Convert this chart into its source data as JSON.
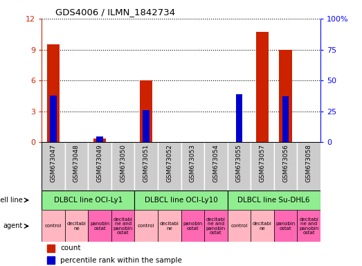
{
  "title": "GDS4006 / ILMN_1842734",
  "samples": [
    "GSM673047",
    "GSM673048",
    "GSM673049",
    "GSM673050",
    "GSM673051",
    "GSM673052",
    "GSM673053",
    "GSM673054",
    "GSM673055",
    "GSM673057",
    "GSM673056",
    "GSM673058"
  ],
  "count_values": [
    9.5,
    0,
    0.35,
    0,
    6.0,
    0,
    0,
    0,
    0,
    10.7,
    9.0,
    0
  ],
  "percentile_values": [
    38.0,
    0,
    4.5,
    0,
    26.0,
    0,
    0,
    0,
    39.0,
    0,
    37.0,
    0
  ],
  "ylim_left": [
    0,
    12
  ],
  "ylim_right": [
    0,
    100
  ],
  "yticks_left": [
    0,
    3,
    6,
    9,
    12
  ],
  "yticks_right": [
    0,
    25,
    50,
    75,
    100
  ],
  "ytick_labels_right": [
    "0",
    "25",
    "50",
    "75",
    "100%"
  ],
  "cell_line_groups": [
    {
      "label": "DLBCL line OCI-Ly1",
      "start": 0,
      "end": 4
    },
    {
      "label": "DLBCL line OCI-Ly10",
      "start": 4,
      "end": 8
    },
    {
      "label": "DLBCL line Su-DHL6",
      "start": 8,
      "end": 12
    }
  ],
  "cell_line_color": "#90EE90",
  "agent_labels_per_col": [
    "control",
    "decitabi\nne",
    "panobin\nostat",
    "decitabi\nne and\npanobin\nostat",
    "control",
    "decitabi\nne",
    "panobin\nostat",
    "decitabi\nne and\npanobin\nostat",
    "control",
    "decitabi\nne",
    "panobin\nostat",
    "decitabi\nne and\npanobin\nostat"
  ],
  "agent_colors_per_col": [
    "#FFB6C1",
    "#FFB6C1",
    "#FF69B4",
    "#FF69B4",
    "#FFB6C1",
    "#FFB6C1",
    "#FF69B4",
    "#FF69B4",
    "#FFB6C1",
    "#FFB6C1",
    "#FF69B4",
    "#FF69B4"
  ],
  "bar_color_count": "#cc2200",
  "bar_color_percentile": "#0000cc",
  "background_color": "#ffffff",
  "sample_bg_color": "#cccccc",
  "border_color": "#000000"
}
